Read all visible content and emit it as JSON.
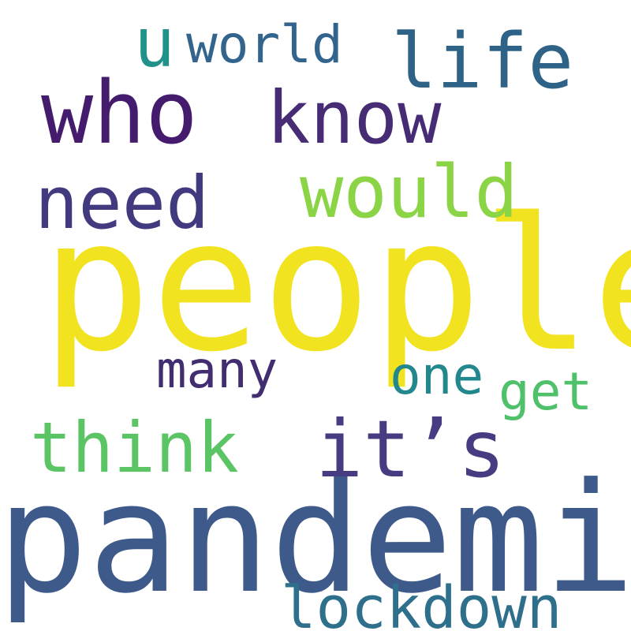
{
  "words": [
    {
      "id": "people",
      "text": "people",
      "color": "#f1e31f"
    },
    {
      "id": "pandemic",
      "text": "pandemic",
      "color": "#3d5a8b"
    },
    {
      "id": "who",
      "text": "who",
      "color": "#451b6e"
    },
    {
      "id": "know",
      "text": "know",
      "color": "#472c75"
    },
    {
      "id": "life",
      "text": "life",
      "color": "#2e6286"
    },
    {
      "id": "need",
      "text": "need",
      "color": "#423a7f"
    },
    {
      "id": "would",
      "text": "would",
      "color": "#8bd446"
    },
    {
      "id": "think",
      "text": "think",
      "color": "#5bc465"
    },
    {
      "id": "its",
      "text": "it’s",
      "color": "#473b81"
    },
    {
      "id": "lockdown",
      "text": "lockdown",
      "color": "#2e6f8b"
    },
    {
      "id": "u",
      "text": "u",
      "color": "#21928a"
    },
    {
      "id": "world",
      "text": "world",
      "color": "#32648d"
    },
    {
      "id": "many",
      "text": "many",
      "color": "#412d70"
    },
    {
      "id": "one",
      "text": "one",
      "color": "#23888d"
    },
    {
      "id": "get",
      "text": "get",
      "color": "#4fc16b"
    }
  ]
}
